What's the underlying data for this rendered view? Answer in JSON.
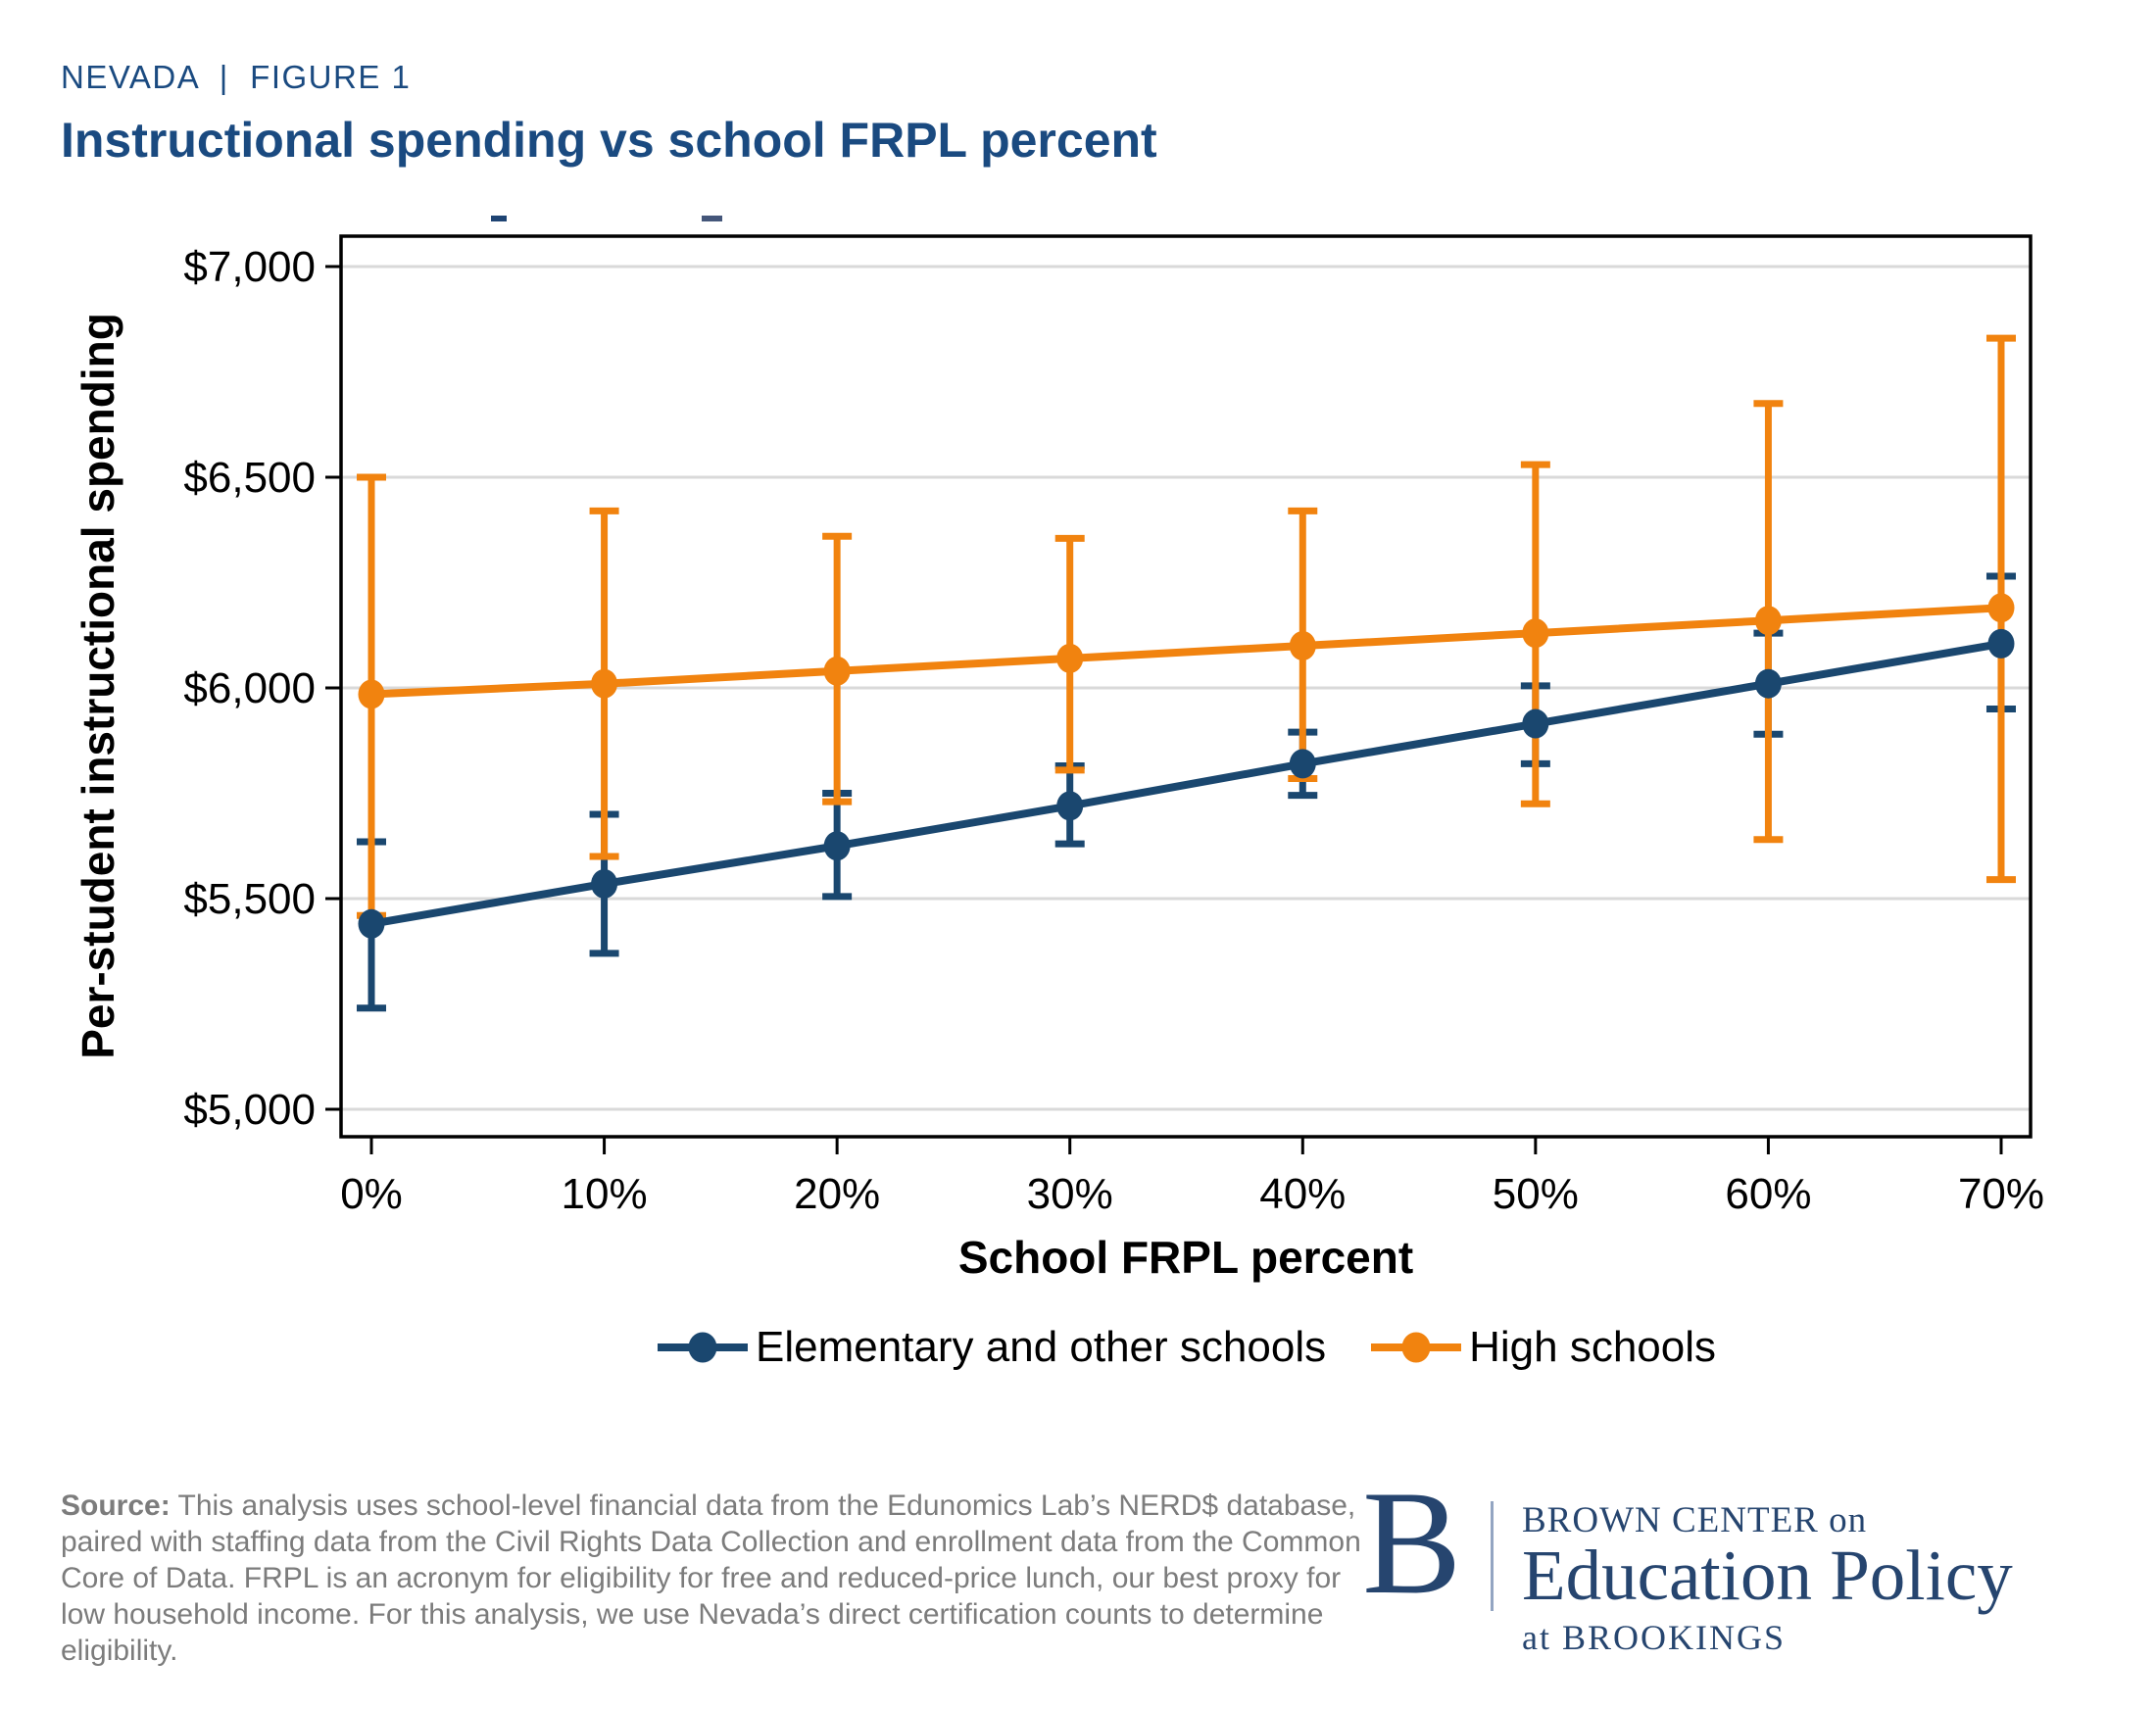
{
  "header": {
    "eyebrow": "NEVADA  |  FIGURE 1",
    "title": "Instructional spending vs school FRPL percent"
  },
  "chart_data": {
    "type": "line",
    "title": "Instructional spending vs school FRPL percent",
    "xlabel": "School FRPL percent",
    "ylabel": "Per-student instructional spending",
    "x": [
      0,
      10,
      20,
      30,
      40,
      50,
      60,
      70
    ],
    "x_tick_labels": [
      "0%",
      "10%",
      "20%",
      "30%",
      "40%",
      "50%",
      "60%",
      "70%"
    ],
    "y_ticks": [
      5000,
      5500,
      6000,
      6500,
      7000
    ],
    "y_tick_labels": [
      "$5,000",
      "$5,500",
      "$6,000",
      "$6,500",
      "$7,000"
    ],
    "ylim": [
      4935,
      7075
    ],
    "xlim": [
      -1.3,
      71.3
    ],
    "grid": "horizontal",
    "legend_position": "bottom",
    "series": [
      {
        "name": "Elementary and other schools",
        "color": "#1a476f",
        "values": [
          5440,
          5535,
          5625,
          5720,
          5820,
          5915,
          6010,
          6105
        ],
        "ci_low": [
          5240,
          5370,
          5505,
          5630,
          5745,
          5820,
          5890,
          5950
        ],
        "ci_high": [
          5635,
          5700,
          5750,
          5815,
          5895,
          6005,
          6130,
          6265
        ]
      },
      {
        "name": "High schools",
        "color": "#f1830f",
        "values": [
          5985,
          6010,
          6040,
          6070,
          6100,
          6130,
          6160,
          6190
        ],
        "ci_low": [
          5460,
          5600,
          5730,
          5805,
          5785,
          5725,
          5640,
          5545
        ],
        "ci_high": [
          6500,
          6420,
          6360,
          6355,
          6420,
          6530,
          6675,
          6830
        ]
      }
    ]
  },
  "source": {
    "label": "Source:",
    "text": " This analysis uses school-level financial data from the Edunomics Lab’s NERD$ database, paired with staffing data from the Civil Rights Data Collection and enrollment data from the Common Core of Data. FRPL is an acronym for eligibility for free and reduced-price lunch, our best proxy for low household income. For this analysis, we use Nevada’s direct certification counts to determine eligibility."
  },
  "logo": {
    "b_letter": "B",
    "line1": "BROWN CENTER on",
    "line2": "Education Policy",
    "line3": "at BROOKINGS",
    "color": "#26456f"
  },
  "colors": {
    "title_blue": "#1a4a80",
    "series_navy": "#1a476f",
    "series_orange": "#f1830f",
    "gridline": "#d9d9d9",
    "axis_black": "#000000",
    "source_gray": "#7c7c7c",
    "logo_navy": "#26456f"
  }
}
